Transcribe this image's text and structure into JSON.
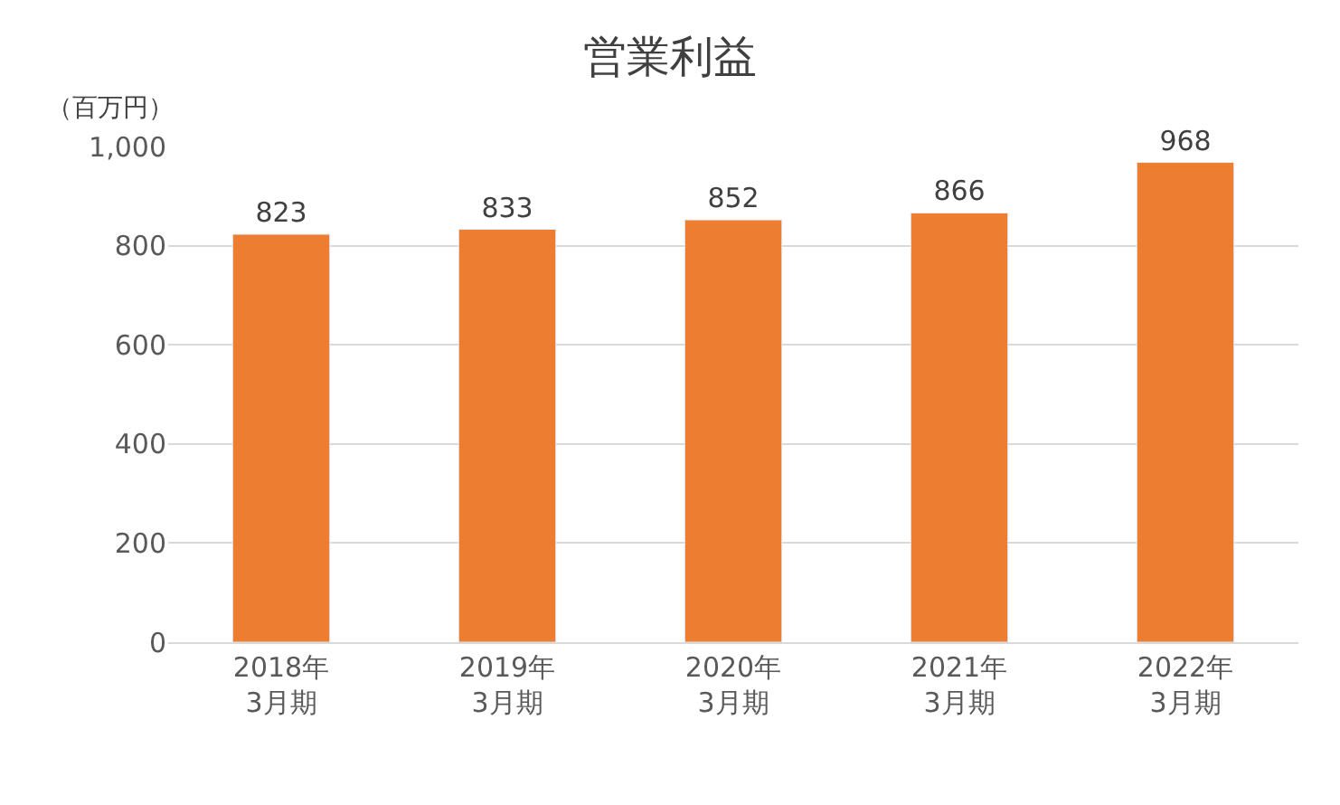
{
  "chart_data": {
    "type": "bar",
    "title": "営業利益",
    "ylabel": "（百万円）",
    "categories": [
      "2018年\n3月期",
      "2019年\n3月期",
      "2020年\n3月期",
      "2021年\n3月期",
      "2022年\n3月期"
    ],
    "values": [
      823,
      833,
      852,
      866,
      968
    ],
    "color": "#ed7d31",
    "ylim": [
      0,
      1000
    ],
    "yticks": [
      0,
      200,
      400,
      600,
      800,
      {
        "value": 1000,
        "label": "1,000"
      }
    ],
    "grid": "y",
    "data_labels": true,
    "legend": false
  }
}
